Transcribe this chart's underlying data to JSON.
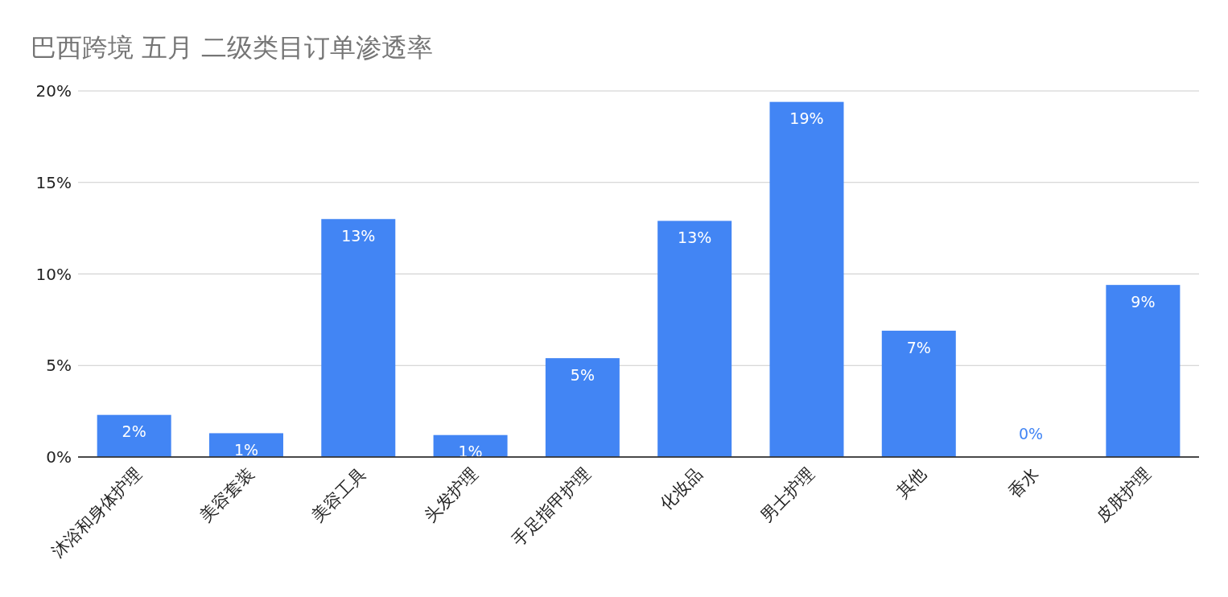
{
  "chart_data": {
    "type": "bar",
    "title": "巴西跨境 五月 二级类目订单渗透率",
    "categories": [
      "沐浴和身体护理",
      "美容套装",
      "美容工具",
      "头发护理",
      "手足指甲护理",
      "化妆品",
      "男士护理",
      "其他",
      "香水",
      "皮肤护理"
    ],
    "values": [
      2.3,
      1.3,
      13.0,
      1.2,
      5.4,
      12.9,
      19.4,
      6.9,
      0,
      9.4
    ],
    "value_labels": [
      "2%",
      "1%",
      "13%",
      "1%",
      "5%",
      "13%",
      "19%",
      "7%",
      "0%",
      "9%"
    ],
    "color": "#4285f4",
    "ylim": [
      0,
      20
    ],
    "yticks": [
      {
        "value": 0,
        "label": "0%"
      },
      {
        "value": 5,
        "label": "5%"
      },
      {
        "value": 10,
        "label": "10%"
      },
      {
        "value": 15,
        "label": "15%"
      },
      {
        "value": 20,
        "label": "20%"
      }
    ],
    "grid": "y"
  }
}
